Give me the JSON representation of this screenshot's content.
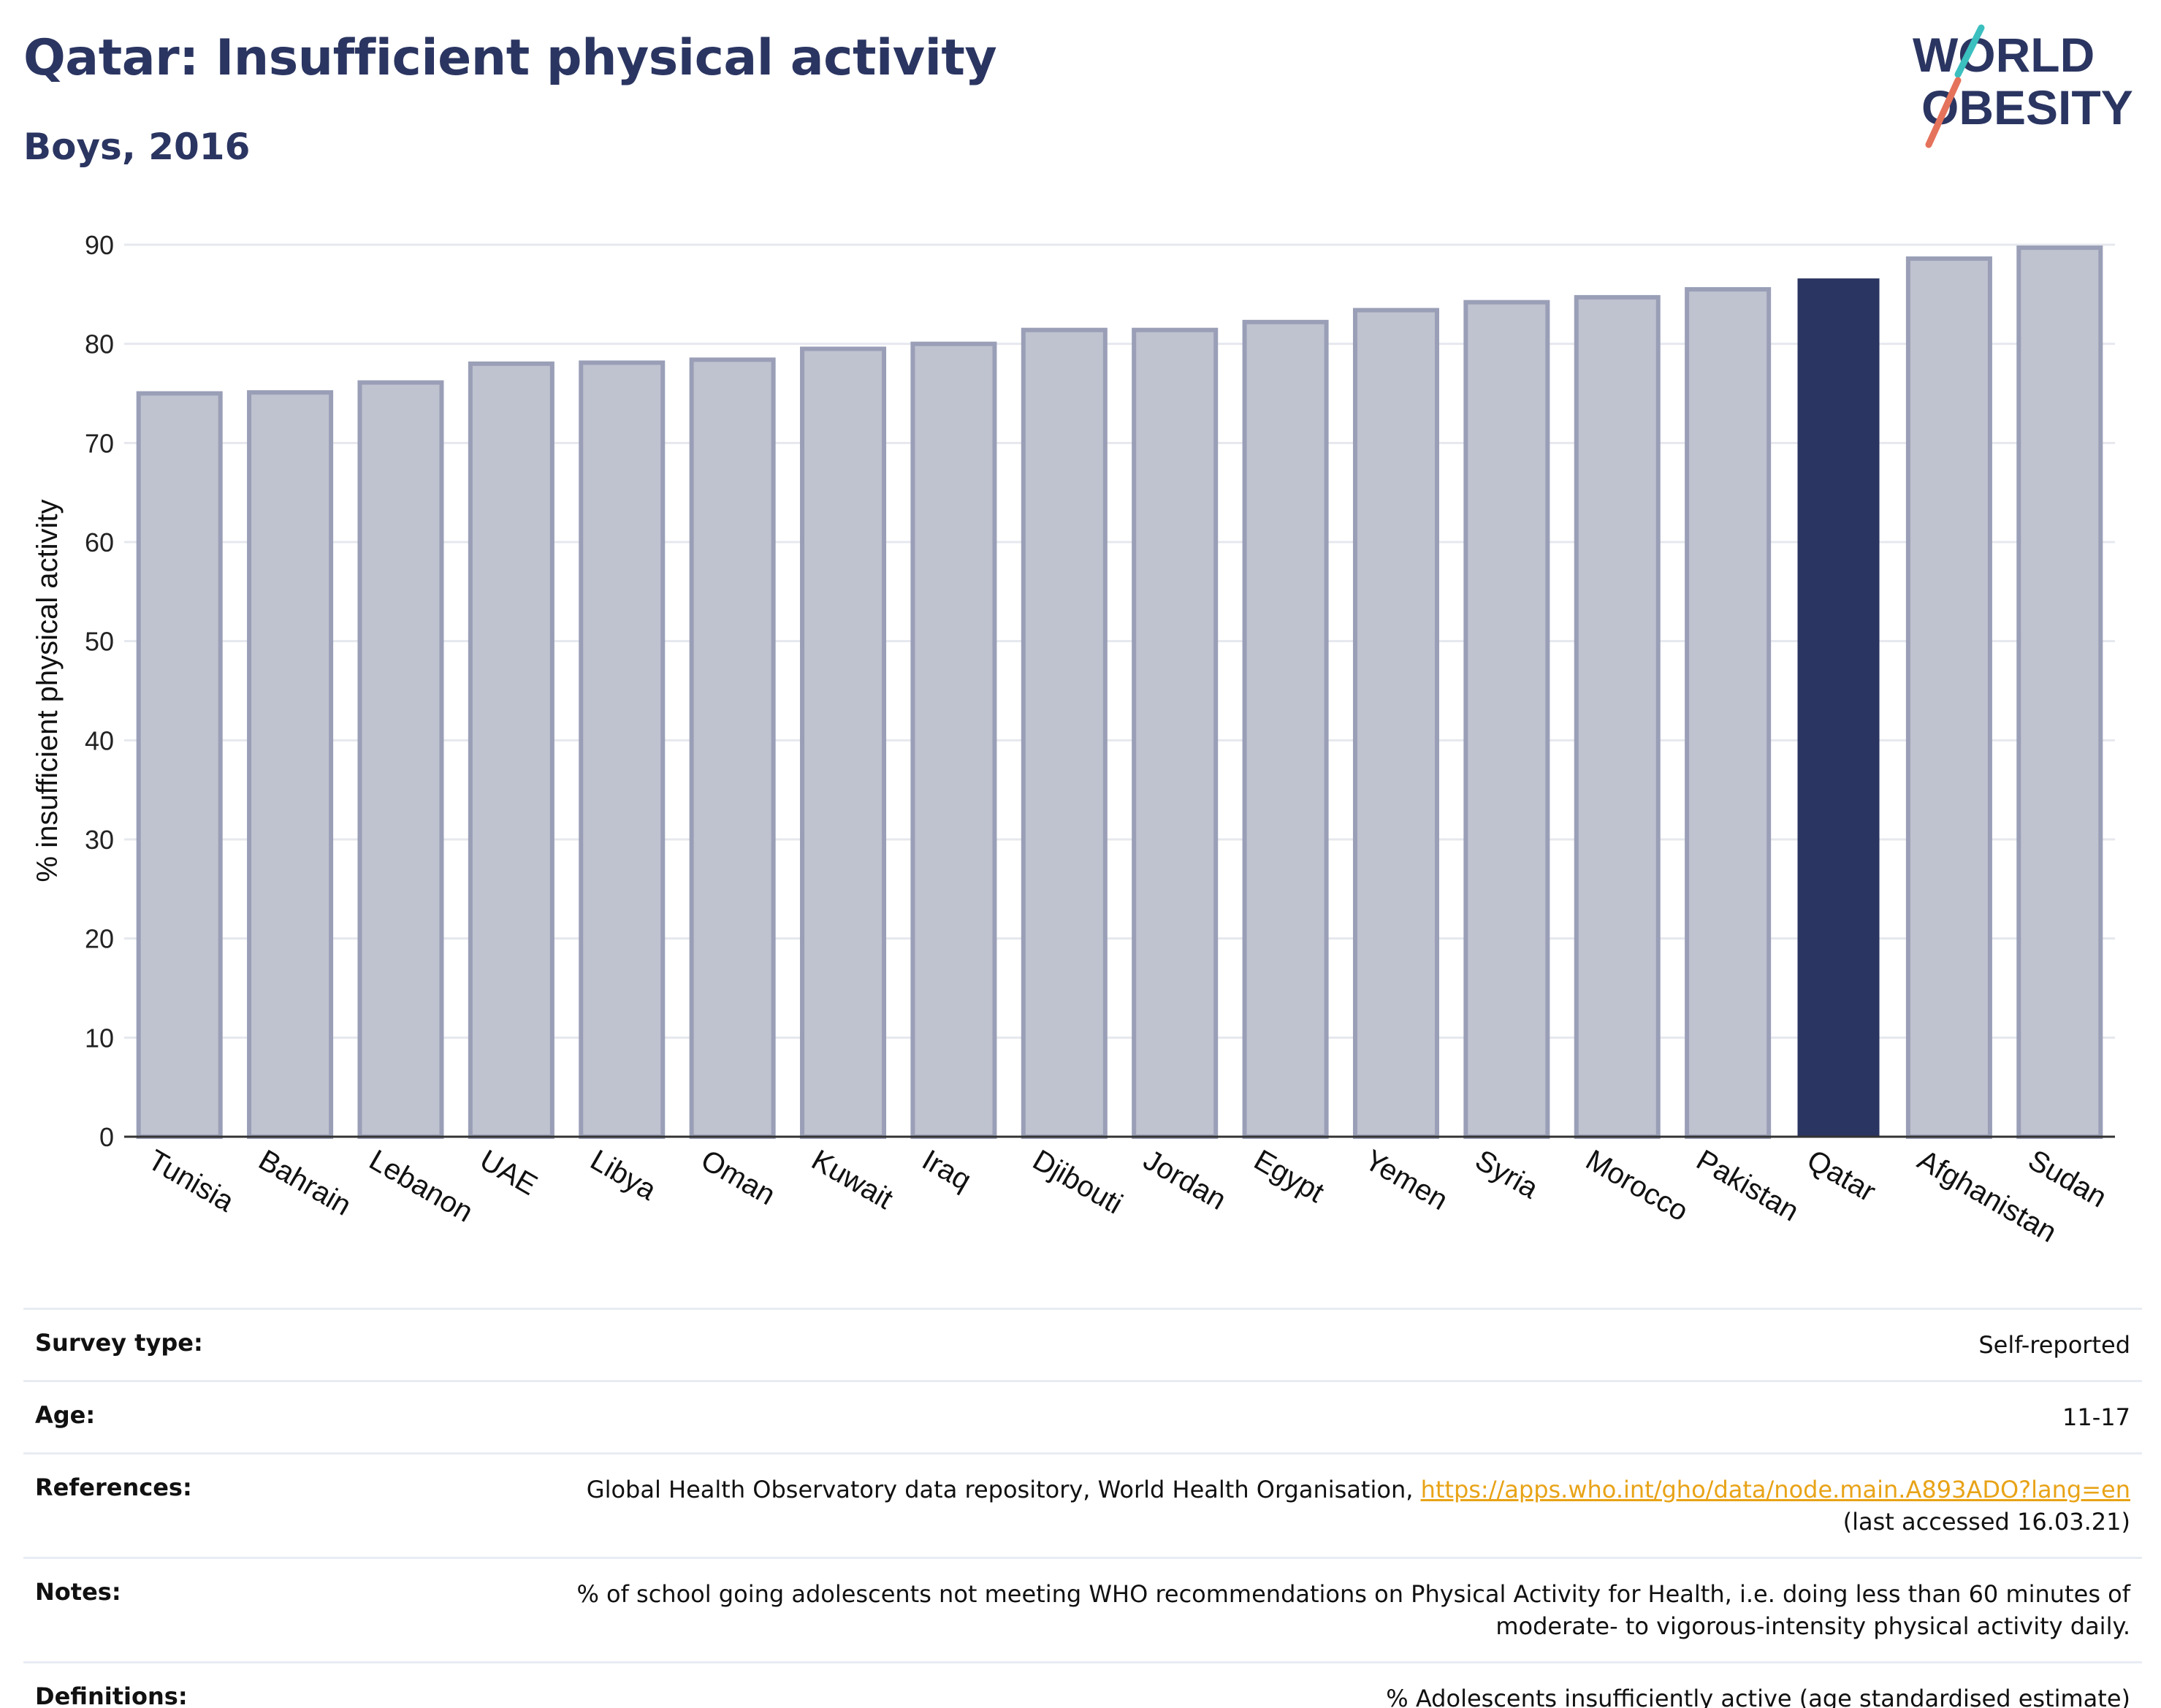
{
  "header": {
    "title": "Qatar: Insufficient physical activity",
    "subtitle": "Boys, 2016"
  },
  "logo": {
    "line1": "WORLD",
    "line2": "OBESITY",
    "colors": {
      "text": "#2b3561",
      "slash_top": "#3bbfbf",
      "slash_bottom": "#e5735c"
    }
  },
  "chart_data": {
    "type": "bar",
    "title": "Qatar: Insufficient physical activity",
    "subtitle": "Boys, 2016",
    "xlabel": "",
    "ylabel": "% insufficient physical activity",
    "ylim": [
      0,
      90
    ],
    "yticks": [
      0,
      10,
      20,
      30,
      40,
      50,
      60,
      70,
      80,
      90
    ],
    "grid": true,
    "highlight": "Qatar",
    "colors": {
      "bar": "#bfc2cf",
      "bar_border": "#9a9fb7",
      "highlight": "#2b3561",
      "grid": "#e6e8ee",
      "axis": "#333333"
    },
    "categories": [
      "Tunisia",
      "Bahrain",
      "Lebanon",
      "UAE",
      "Libya",
      "Oman",
      "Kuwait",
      "Iraq",
      "Djibouti",
      "Jordan",
      "Egypt",
      "Yemen",
      "Syria",
      "Morocco",
      "Pakistan",
      "Qatar",
      "Afghanistan",
      "Sudan"
    ],
    "values": [
      75.0,
      75.1,
      76.1,
      78.0,
      78.1,
      78.4,
      79.5,
      80.0,
      81.4,
      81.4,
      82.2,
      83.4,
      84.2,
      84.7,
      85.5,
      86.6,
      88.6,
      89.7
    ]
  },
  "info": {
    "rows": [
      {
        "key": "Survey type:",
        "value": "Self-reported"
      },
      {
        "key": "Age:",
        "value": "11-17"
      },
      {
        "key": "References:",
        "value": "Global Health Observatory data repository, World Health Organisation, ",
        "link": "https://apps.who.int/gho/data/node.main.A893ADO?lang=en",
        "value2": "(last accessed 16.03.21)"
      },
      {
        "key": "Notes:",
        "value": "% of school going adolescents not meeting WHO recommendations on Physical Activity for Health, i.e. doing less than 60 minutes of",
        "value2": "moderate- to vigorous-intensity physical activity daily."
      },
      {
        "key": "Definitions:",
        "value": "% Adolescents insufficiently active (age standardised estimate)"
      }
    ]
  }
}
